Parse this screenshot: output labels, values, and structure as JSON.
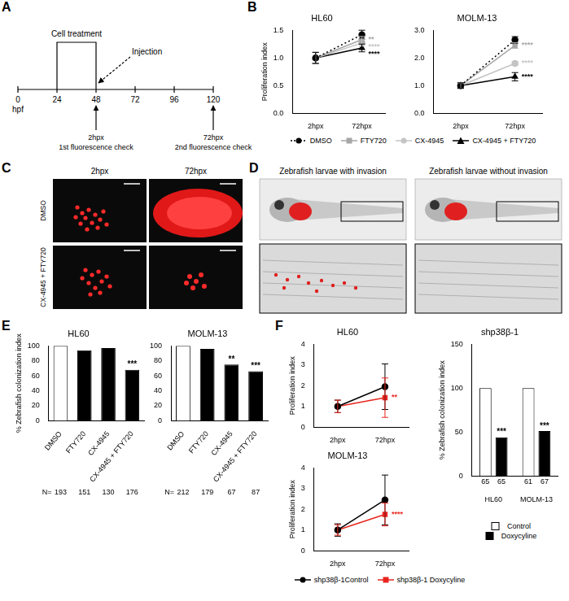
{
  "timeline": {
    "panel": "A",
    "ticks": [
      0,
      24,
      48,
      72,
      96,
      120
    ],
    "unit": "hpf",
    "treatment": {
      "label": "Cell treatment",
      "from": 24,
      "to": 48
    },
    "injection": {
      "label": "Injection",
      "at": 48
    },
    "checks": [
      {
        "at": 48,
        "label": "2hpx",
        "note": "1st fluorescence check"
      },
      {
        "at": 120,
        "label": "72hpx",
        "note": "2nd fluorescence check"
      }
    ]
  },
  "images": {
    "C": {
      "panel": "C",
      "columns": [
        "2hpx",
        "72hpx"
      ],
      "rows": [
        "DMSO",
        "CX-4945 + FTY720"
      ]
    },
    "D": {
      "panel": "D",
      "captions": [
        "Zebrafish larvae with invasion",
        "Zebrafish larvae without invasion"
      ]
    }
  },
  "chart_data": [
    {
      "panel": "B",
      "type": "line",
      "title": "HL60",
      "y_label": "Proliferation index",
      "categories": [
        "2hpx",
        "72hpx"
      ],
      "ylim": [
        0,
        1.5
      ],
      "yticks": [
        {
          "value": 0,
          "label": "0.0"
        },
        {
          "value": 0.5,
          "label": "0.5"
        },
        {
          "value": 1,
          "label": "1.0"
        },
        {
          "value": 1.5,
          "label": "1.5"
        }
      ],
      "grid": false,
      "series": [
        {
          "name": "DMSO",
          "color": "#000000",
          "marker": "circle",
          "line_style": "dotted",
          "values": [
            1,
            1.42
          ],
          "errors": [
            0.1,
            0.08
          ]
        },
        {
          "name": "FTY720",
          "color": "#a6a6a6",
          "marker": "square",
          "line_style": "solid",
          "values": [
            1,
            1.33
          ],
          "errors": [
            0.1,
            0.06
          ],
          "significance": [
            null,
            "**"
          ]
        },
        {
          "name": "CX-4945",
          "color": "#c4c4c4",
          "marker": "circle",
          "line_style": "solid",
          "values": [
            1,
            1.27
          ],
          "errors": [
            0.1,
            0.06
          ],
          "significance": [
            null,
            "****"
          ]
        },
        {
          "name": "CX-4945 + FTY720",
          "color": "#000000",
          "marker": "triangle",
          "line_style": "solid",
          "values": [
            1,
            1.18
          ],
          "errors": [
            0.1,
            0.07
          ],
          "significance": [
            null,
            "****"
          ]
        }
      ]
    },
    {
      "type": "line",
      "title": "MOLM-13",
      "legend": "bottom",
      "categories": [
        "2hpx",
        "72hpx"
      ],
      "ylim": [
        0,
        3
      ],
      "yticks": [
        {
          "value": 0,
          "label": "0.0"
        },
        {
          "value": 1,
          "label": "1.0"
        },
        {
          "value": 2,
          "label": "2.0"
        },
        {
          "value": 3,
          "label": "3.0"
        }
      ],
      "grid": false,
      "series": [
        {
          "name": "DMSO",
          "color": "#000000",
          "marker": "circle",
          "line_style": "dotted",
          "values": [
            1,
            2.65
          ],
          "errors": [
            0.1,
            0.12
          ]
        },
        {
          "name": "FTY720",
          "color": "#a6a6a6",
          "marker": "square",
          "line_style": "solid",
          "values": [
            1,
            2.45
          ],
          "errors": [
            0.1,
            0.1
          ],
          "significance": [
            null,
            "****"
          ]
        },
        {
          "name": "CX-4945",
          "color": "#c4c4c4",
          "marker": "circle",
          "line_style": "solid",
          "values": [
            1,
            1.8
          ],
          "errors": [
            0.1,
            0.07
          ],
          "significance": [
            null,
            "****"
          ]
        },
        {
          "name": "CX-4945 + FTY720",
          "color": "#000000",
          "marker": "triangle",
          "line_style": "solid",
          "values": [
            1,
            1.32
          ],
          "errors": [
            0.1,
            0.15
          ],
          "significance": [
            null,
            "****"
          ]
        }
      ]
    },
    {
      "panel": "E",
      "type": "bar",
      "title": "HL60",
      "y_label": "% Zebrafish colonization index",
      "categories": [
        "DMSO",
        "FTY720",
        "CX-4945",
        "CX-4945 + FTY720"
      ],
      "values": [
        100,
        94,
        97,
        68
      ],
      "colors": [
        "#ffffff",
        "#000000",
        "#000000",
        "#000000"
      ],
      "significance": [
        null,
        null,
        null,
        "***"
      ],
      "n_label": "N=",
      "n": [
        193,
        151,
        130,
        176
      ],
      "ylim": [
        0,
        100
      ],
      "yticks": [
        0,
        20,
        40,
        60,
        80,
        100
      ],
      "grid": false
    },
    {
      "type": "bar",
      "title": "MOLM-13",
      "categories": [
        "DMSO",
        "FTY720",
        "CX-4945",
        "CX-4945 + FTY720"
      ],
      "values": [
        100,
        96,
        75,
        66
      ],
      "colors": [
        "#ffffff",
        "#000000",
        "#000000",
        "#000000"
      ],
      "significance": [
        null,
        null,
        "**",
        "***"
      ],
      "n_label": "N=",
      "n": [
        212,
        179,
        67,
        87
      ],
      "ylim": [
        0,
        100
      ],
      "yticks": [
        0,
        20,
        40,
        60,
        80,
        100
      ],
      "grid": false
    },
    {
      "panel": "F",
      "type": "line",
      "title": "HL60",
      "y_label": "Proliferation index",
      "categories": [
        "2hpx",
        "72hpx"
      ],
      "ylim": [
        0,
        4
      ],
      "yticks": [
        0,
        1,
        2,
        3,
        4
      ],
      "grid": false,
      "series": [
        {
          "name": "shp38β-1Control",
          "color": "#000000",
          "marker": "circle",
          "line_style": "solid",
          "values": [
            1,
            1.95
          ],
          "errors": [
            0.3,
            1.1
          ]
        },
        {
          "name": "shp38β-1 Doxycyline",
          "color": "#e8251f",
          "marker": "square",
          "line_style": "solid",
          "values": [
            1,
            1.42
          ],
          "errors": [
            0.3,
            0.95
          ],
          "significance": [
            null,
            "**"
          ]
        }
      ]
    },
    {
      "type": "line",
      "title": "MOLM-13",
      "y_label": "Proliferation index",
      "legend": "bottom",
      "categories": [
        "2hpx",
        "72hpx"
      ],
      "ylim": [
        0,
        4
      ],
      "yticks": [
        0,
        1,
        2,
        3,
        4
      ],
      "grid": false,
      "series": [
        {
          "name": "shp38β-1Control",
          "color": "#000000",
          "marker": "circle",
          "line_style": "solid",
          "values": [
            1,
            2.45
          ],
          "errors": [
            0.3,
            1.2
          ]
        },
        {
          "name": "shp38β-1 Doxycyline",
          "color": "#e8251f",
          "marker": "square",
          "line_style": "solid",
          "values": [
            1,
            1.75
          ],
          "errors": [
            0.25,
            0.55
          ],
          "significance": [
            null,
            "****"
          ]
        }
      ]
    },
    {
      "type": "bar",
      "title": "shp38β-1",
      "y_label": "% Zebrafish colonization index",
      "legend": "bottom",
      "categories": [
        "HL60",
        "MOLM-13"
      ],
      "ylim": [
        0,
        150
      ],
      "yticks": [
        0,
        50,
        100,
        150
      ],
      "grid": false,
      "series": [
        {
          "name": "Control",
          "color": "#ffffff",
          "values": [
            100,
            100
          ],
          "n": [
            65,
            61
          ]
        },
        {
          "name": "Doxycyline",
          "color": "#000000",
          "values": [
            44,
            51
          ],
          "n": [
            65,
            67
          ],
          "significance": [
            "***",
            "***"
          ]
        }
      ]
    }
  ]
}
